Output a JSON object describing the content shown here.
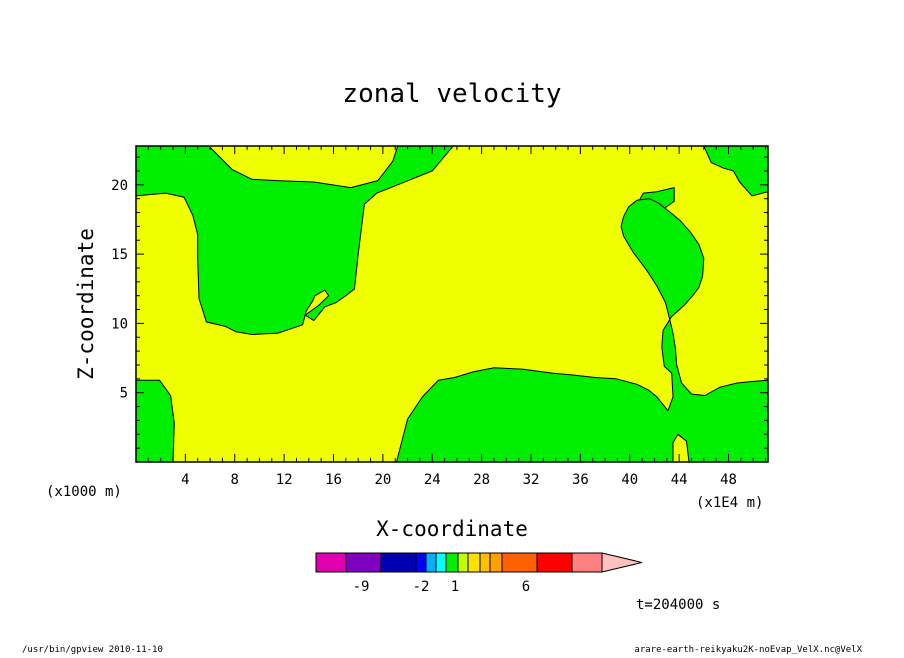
{
  "chart_data": {
    "type": "heatmap",
    "title": "zonal velocity",
    "xlabel": "X-coordinate",
    "ylabel": "Z-coordinate",
    "x_unit_label": "(x1E4 m)",
    "y_unit_label": "(x1000 m)",
    "xlim": [
      0,
      51.2
    ],
    "ylim": [
      0,
      22.8
    ],
    "x_ticks": [
      "4",
      "8",
      "12",
      "16",
      "20",
      "24",
      "28",
      "32",
      "36",
      "40",
      "44",
      "48"
    ],
    "x_tick_values": [
      4,
      8,
      12,
      16,
      20,
      24,
      28,
      32,
      36,
      40,
      44,
      48
    ],
    "y_ticks": [
      "5",
      "10",
      "15",
      "20"
    ],
    "y_tick_values": [
      5,
      10,
      15,
      20
    ],
    "background_color": "#f0ff00",
    "fill_color": "#00ee00",
    "regions": [
      {
        "name": "upper-left",
        "color": "#00ee00",
        "points": [
          [
            5.9,
            22.8
          ],
          [
            7.8,
            21.1
          ],
          [
            9.4,
            20.4
          ],
          [
            11.4,
            20.3
          ],
          [
            14.4,
            20.2
          ],
          [
            17.4,
            19.8
          ],
          [
            19.6,
            20.3
          ],
          [
            20.8,
            21.7
          ],
          [
            21.2,
            22.8
          ],
          [
            25.7,
            22.8
          ],
          [
            24.0,
            21.0
          ],
          [
            21.2,
            20.0
          ],
          [
            19.5,
            19.4
          ],
          [
            18.5,
            18.6
          ],
          [
            18.0,
            15.0
          ],
          [
            17.7,
            12.5
          ],
          [
            17.0,
            12.0
          ],
          [
            16.2,
            11.5
          ],
          [
            15.3,
            11.2
          ],
          [
            14.4,
            10.2
          ],
          [
            13.7,
            10.6
          ],
          [
            14.8,
            11.3
          ],
          [
            15.6,
            12.0
          ],
          [
            15.3,
            12.4
          ],
          [
            14.5,
            12.0
          ],
          [
            14.3,
            11.6
          ],
          [
            13.8,
            10.9
          ],
          [
            13.5,
            9.9
          ],
          [
            11.5,
            9.3
          ],
          [
            9.4,
            9.2
          ],
          [
            8.1,
            9.4
          ],
          [
            7.2,
            9.8
          ],
          [
            5.7,
            10.1
          ],
          [
            5.1,
            11.8
          ],
          [
            5.0,
            14.7
          ],
          [
            5.0,
            16.4
          ],
          [
            4.6,
            17.8
          ],
          [
            3.9,
            19.1
          ],
          [
            2.4,
            19.4
          ],
          [
            0,
            19.2
          ],
          [
            0,
            22.8
          ]
        ]
      },
      {
        "name": "far-left",
        "color": "#00ee00",
        "points": [
          [
            0,
            0
          ],
          [
            3.0,
            0
          ],
          [
            3.1,
            2.8
          ],
          [
            2.8,
            4.8
          ],
          [
            1.9,
            5.9
          ],
          [
            0,
            5.9
          ]
        ]
      },
      {
        "name": "top-right-corner",
        "color": "#00ee00",
        "points": [
          [
            51.2,
            22.8
          ],
          [
            51.2,
            19.5
          ],
          [
            49.9,
            19.2
          ],
          [
            48.9,
            20.2
          ],
          [
            48.4,
            21.0
          ],
          [
            47.6,
            21.2
          ],
          [
            46.6,
            21.6
          ],
          [
            46.0,
            22.8
          ]
        ]
      },
      {
        "name": "upper-right",
        "color": "#00ee00",
        "points": [
          [
            43.6,
            19.8
          ],
          [
            43.6,
            18.8
          ],
          [
            42.0,
            17.8
          ],
          [
            40.4,
            16.7
          ],
          [
            39.6,
            17.7
          ],
          [
            40.3,
            18.1
          ],
          [
            41.1,
            19.4
          ],
          [
            42.2,
            19.5
          ]
        ]
      },
      {
        "name": "right-tongue",
        "color": "#00ee00",
        "points": [
          [
            43.4,
            6.4
          ],
          [
            42.8,
            6.9
          ],
          [
            42.6,
            8.3
          ],
          [
            42.7,
            9.5
          ],
          [
            43.4,
            10.5
          ],
          [
            44.4,
            11.3
          ],
          [
            45.1,
            12.0
          ],
          [
            45.6,
            12.6
          ],
          [
            45.9,
            13.4
          ],
          [
            46.0,
            14.7
          ],
          [
            45.6,
            15.7
          ],
          [
            44.9,
            16.6
          ],
          [
            44.1,
            17.4
          ],
          [
            43.3,
            18.0
          ],
          [
            42.3,
            18.7
          ],
          [
            41.6,
            19.0
          ],
          [
            40.6,
            18.9
          ],
          [
            39.9,
            18.4
          ],
          [
            39.5,
            17.7
          ],
          [
            39.3,
            17.0
          ],
          [
            39.5,
            16.3
          ],
          [
            40.3,
            15.1
          ],
          [
            41.4,
            13.8
          ],
          [
            42.2,
            12.7
          ],
          [
            42.9,
            11.5
          ],
          [
            43.2,
            10.4
          ],
          [
            43.5,
            9.3
          ],
          [
            43.7,
            8.2
          ],
          [
            43.8,
            7.0
          ],
          [
            44.2,
            5.7
          ],
          [
            45.0,
            4.9
          ],
          [
            46.1,
            4.8
          ],
          [
            47.3,
            5.4
          ],
          [
            48.7,
            5.7
          ],
          [
            49.8,
            5.8
          ],
          [
            51.2,
            5.9
          ],
          [
            51.2,
            0
          ],
          [
            44.8,
            0
          ],
          [
            44.6,
            1.5
          ],
          [
            43.9,
            2.0
          ],
          [
            43.5,
            1.4
          ],
          [
            43.5,
            0
          ],
          [
            21.1,
            0
          ],
          [
            22.0,
            3.1
          ],
          [
            23.2,
            4.7
          ],
          [
            24.5,
            5.9
          ],
          [
            25.8,
            6.1
          ],
          [
            27.3,
            6.5
          ],
          [
            29.0,
            6.8
          ],
          [
            31.3,
            6.7
          ],
          [
            33.8,
            6.4
          ],
          [
            35.2,
            6.3
          ],
          [
            37.2,
            6.1
          ],
          [
            38.9,
            6.0
          ],
          [
            40.6,
            5.6
          ],
          [
            41.5,
            5.2
          ],
          [
            42.2,
            4.7
          ],
          [
            43.1,
            3.7
          ],
          [
            43.5,
            4.7
          ]
        ]
      }
    ],
    "colorbar": {
      "labels": [
        "-9",
        "-2",
        "1",
        "6"
      ],
      "colors": [
        "#e000b0",
        "#8000c0",
        "#0000b0",
        "#0000ff",
        "#00b0ff",
        "#00ffff",
        "#00ee00",
        "#c0ff00",
        "#ffe000",
        "#ffc000",
        "#ffa000",
        "#ff6000",
        "#ff0000",
        "#ff8080",
        "#ffc0c0"
      ]
    },
    "time_label": "t=204000 s"
  },
  "footer": {
    "left": "/usr/bin/gpview   2010-11-10",
    "right": "arare-earth-reikyaku2K-noEvap_VelX.nc@VelX"
  }
}
